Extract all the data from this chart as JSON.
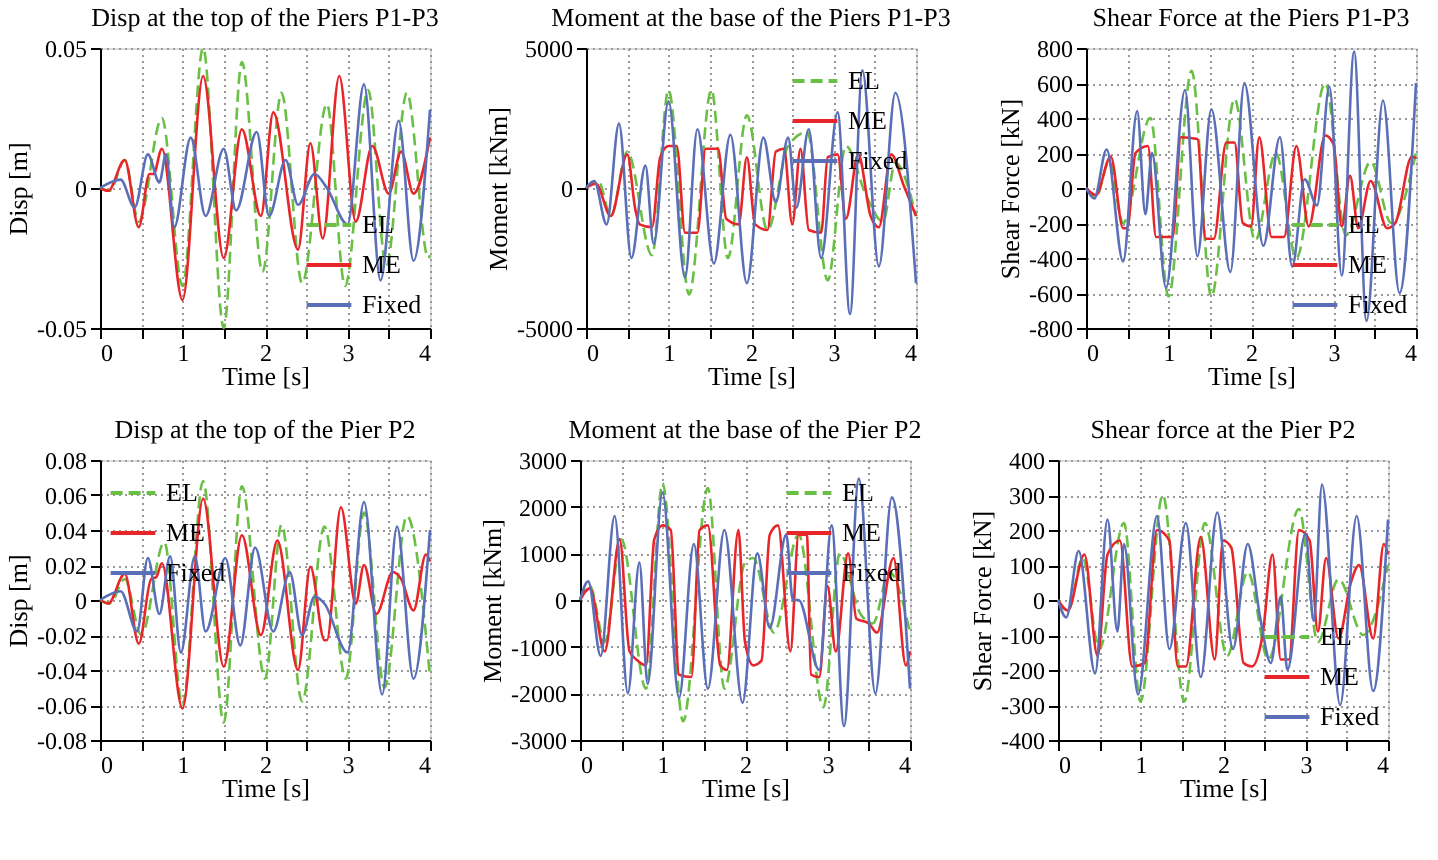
{
  "chart_data": [
    {
      "type": "line",
      "title": "Disp at the top of the Piers P1-P3",
      "xlabel": "Time  [s]",
      "ylabel": "Disp [m]",
      "xlim": [
        0,
        4
      ],
      "ylim": [
        -0.05,
        0.05
      ],
      "xticks": [
        0,
        {
          "value": 0.5,
          "label": null
        },
        1,
        {
          "value": 1.5,
          "label": null
        },
        2,
        {
          "value": 2.5,
          "label": null
        },
        3,
        {
          "value": 3.5,
          "label": null
        },
        4
      ],
      "yticks": [
        -0.05,
        0,
        0.05
      ],
      "grid": true,
      "legend": "bottom right",
      "series": [
        {
          "name": "EL",
          "color": "#6abf45",
          "line_style": "dashed",
          "x": [
            0,
            0.12,
            0.3,
            0.47,
            0.75,
            1.0,
            1.25,
            1.5,
            1.72,
            1.97,
            2.2,
            2.45,
            2.75,
            2.97,
            3.25,
            3.47,
            3.72,
            3.98,
            4.0
          ],
          "values": [
            0,
            -0.001,
            0.01,
            -0.012,
            0.025,
            -0.035,
            0.05,
            -0.05,
            0.045,
            -0.03,
            0.034,
            -0.034,
            0.03,
            -0.035,
            0.035,
            -0.028,
            0.034,
            -0.025,
            -0.024
          ]
        },
        {
          "name": "ME",
          "color": "#e8262a",
          "line_style": "solid",
          "x": [
            0,
            0.1,
            0.3,
            0.47,
            0.6,
            0.65,
            0.75,
            1.0,
            1.25,
            1.5,
            1.72,
            1.95,
            2.1,
            2.4,
            2.55,
            2.7,
            2.9,
            3.1,
            3.3,
            3.5,
            3.65,
            3.8,
            4.0
          ],
          "values": [
            0,
            -0.001,
            0.01,
            -0.014,
            0.005,
            0.005,
            0.014,
            -0.04,
            0.04,
            -0.025,
            0.021,
            -0.01,
            0.027,
            -0.022,
            0.016,
            -0.018,
            0.04,
            -0.012,
            0.015,
            -0.002,
            0.013,
            -0.002,
            0.018
          ]
        },
        {
          "name": "Fixed",
          "color": "#5a6fb8",
          "line_style": "solid",
          "x": [
            0,
            0.25,
            0.42,
            0.58,
            0.72,
            0.8,
            0.9,
            1.1,
            1.28,
            1.5,
            1.65,
            1.9,
            2.05,
            2.25,
            2.4,
            2.6,
            2.75,
            3.0,
            3.2,
            3.4,
            3.62,
            3.8,
            4.0
          ],
          "values": [
            0,
            0.003,
            -0.007,
            0.012,
            0.002,
            0.012,
            -0.014,
            0.018,
            -0.01,
            0.014,
            -0.008,
            0.02,
            -0.01,
            0.01,
            -0.006,
            0.005,
            0.0,
            -0.013,
            0.037,
            -0.033,
            0.024,
            -0.026,
            0.028
          ]
        }
      ]
    },
    {
      "type": "line",
      "title": "Moment at the base of the Piers P1-P3",
      "xlabel": "Time  [s]",
      "ylabel": "Moment [kNm]",
      "xlim": [
        0,
        4
      ],
      "ylim": [
        -5000,
        5000
      ],
      "xticks": [
        0,
        {
          "value": 0.5,
          "label": null
        },
        1,
        {
          "value": 1.5,
          "label": null
        },
        2,
        {
          "value": 2.5,
          "label": null
        },
        3,
        {
          "value": 3.5,
          "label": null
        },
        4
      ],
      "yticks": [
        -5000,
        0,
        5000
      ],
      "grid": true,
      "legend": "top right",
      "series": [
        {
          "name": "EL",
          "color": "#6abf45",
          "line_style": "dashed",
          "x": [
            0,
            0.15,
            0.3,
            0.5,
            0.8,
            1.0,
            1.25,
            1.52,
            1.72,
            1.95,
            2.2,
            2.45,
            2.68,
            2.93,
            3.15,
            3.4,
            3.6,
            3.75,
            4.0
          ],
          "values": [
            0,
            250,
            -1000,
            1300,
            -2400,
            3500,
            -3800,
            3500,
            -2500,
            2600,
            -1500,
            1500,
            2000,
            -3300,
            1500,
            -300,
            -1200,
            900,
            -1000
          ]
        },
        {
          "name": "ME",
          "color": "#e8262a",
          "line_style": "solid",
          "x": [
            0,
            0.12,
            0.3,
            0.5,
            0.6,
            0.65,
            0.8,
            0.9,
            1.0,
            1.1,
            1.2,
            1.35,
            1.45,
            1.6,
            1.7,
            1.85,
            1.95,
            2.05,
            2.2,
            2.3,
            2.4,
            2.5,
            2.6,
            2.7,
            2.85,
            2.93,
            3.05,
            3.15,
            3.3,
            3.45,
            3.55,
            3.7,
            3.85,
            4.0
          ],
          "values": [
            0,
            150,
            -1000,
            1200,
            -800,
            -1300,
            -1400,
            1100,
            1500,
            1500,
            -1600,
            -1600,
            1400,
            1400,
            -1100,
            -1300,
            1100,
            -1300,
            -1500,
            1300,
            1400,
            -1300,
            1400,
            -1500,
            -1600,
            1100,
            1200,
            -1100,
            1200,
            -1000,
            -1400,
            1200,
            100,
            -1000
          ]
        },
        {
          "name": "Fixed",
          "color": "#5a6fb8",
          "line_style": "solid",
          "x": [
            0,
            0.1,
            0.25,
            0.4,
            0.55,
            0.72,
            0.82,
            1.0,
            1.2,
            1.35,
            1.55,
            1.75,
            1.95,
            2.15,
            2.3,
            2.45,
            2.55,
            2.7,
            2.85,
            3.05,
            3.2,
            3.35,
            3.55,
            3.75,
            4.0
          ],
          "values": [
            0,
            250,
            -1300,
            2300,
            -2500,
            800,
            -2000,
            3100,
            -3200,
            2100,
            -2700,
            1900,
            -3400,
            1800,
            -500,
            1800,
            -700,
            2100,
            -2500,
            2700,
            -4500,
            4200,
            -2800,
            3400,
            -3400
          ]
        }
      ]
    },
    {
      "type": "line",
      "title": "Shear Force at the Piers P1-P3",
      "xlabel": "Time  [s]",
      "ylabel": "Shear Force [kN]",
      "xlim": [
        0,
        4
      ],
      "ylim": [
        -800,
        800
      ],
      "xticks": [
        0,
        {
          "value": 0.5,
          "label": null
        },
        1,
        {
          "value": 1.5,
          "label": null
        },
        2,
        {
          "value": 2.5,
          "label": null
        },
        3,
        {
          "value": 3.5,
          "label": null
        },
        4
      ],
      "yticks": [
        -800,
        -600,
        -400,
        -200,
        0,
        200,
        400,
        600,
        800
      ],
      "grid": true,
      "legend": "bottom right",
      "series": [
        {
          "name": "EL",
          "color": "#6abf45",
          "line_style": "dashed",
          "x": [
            0,
            0.12,
            0.28,
            0.45,
            0.78,
            1.0,
            1.28,
            1.52,
            1.8,
            2.05,
            2.3,
            2.55,
            2.9,
            3.15,
            3.45,
            3.7,
            4.0
          ],
          "values": [
            0,
            -50,
            150,
            -200,
            400,
            -620,
            670,
            -620,
            510,
            -300,
            200,
            -400,
            600,
            -270,
            150,
            -200,
            200
          ]
        },
        {
          "name": "ME",
          "color": "#e8262a",
          "line_style": "solid",
          "x": [
            0,
            0.12,
            0.3,
            0.45,
            0.5,
            0.6,
            0.75,
            0.85,
            0.95,
            1.05,
            1.15,
            1.35,
            1.45,
            1.55,
            1.7,
            1.8,
            1.9,
            2.0,
            2.1,
            2.25,
            2.4,
            2.55,
            2.7,
            2.9,
            3.0,
            3.1,
            3.2,
            3.3,
            3.45,
            3.65,
            3.75,
            3.95,
            4.0
          ],
          "values": [
            0,
            -40,
            180,
            -230,
            -230,
            200,
            240,
            -280,
            -280,
            -280,
            290,
            280,
            -290,
            -290,
            260,
            260,
            -200,
            -220,
            290,
            -280,
            -280,
            240,
            -220,
            300,
            250,
            -220,
            70,
            -230,
            40,
            -230,
            -200,
            180,
            170
          ]
        },
        {
          "name": "Fixed",
          "color": "#5a6fb8",
          "line_style": "solid",
          "x": [
            0,
            0.1,
            0.25,
            0.45,
            0.62,
            0.72,
            0.8,
            0.97,
            1.2,
            1.35,
            1.52,
            1.75,
            1.92,
            2.15,
            2.35,
            2.5,
            2.65,
            2.8,
            2.95,
            3.1,
            3.25,
            3.4,
            3.6,
            3.8,
            4.0
          ],
          "values": [
            0,
            -60,
            220,
            -420,
            440,
            -150,
            200,
            -570,
            560,
            -390,
            450,
            -480,
            600,
            -330,
            290,
            -450,
            50,
            -100,
            580,
            -500,
            780,
            -760,
            500,
            -600,
            600
          ]
        }
      ]
    },
    {
      "type": "line",
      "title": "Disp at the top of the Pier P2",
      "xlabel": "Time  [s]",
      "ylabel": "Disp [m]",
      "xlim": [
        0,
        4
      ],
      "ylim": [
        -0.08,
        0.08
      ],
      "xticks": [
        0,
        {
          "value": 0.5,
          "label": null
        },
        1,
        {
          "value": 1.5,
          "label": null
        },
        2,
        {
          "value": 2.5,
          "label": null
        },
        3,
        {
          "value": 3.5,
          "label": null
        },
        4
      ],
      "yticks": [
        -0.08,
        -0.06,
        -0.04,
        -0.02,
        0,
        0.02,
        0.04,
        0.06,
        0.08
      ],
      "grid": true,
      "legend": "top left",
      "series": [
        {
          "name": "EL",
          "color": "#6abf45",
          "line_style": "dashed",
          "x": [
            0,
            0.12,
            0.3,
            0.5,
            0.78,
            1.0,
            1.25,
            1.5,
            1.72,
            2.0,
            2.2,
            2.45,
            2.72,
            2.98,
            3.2,
            3.45,
            3.72,
            4.0
          ],
          "values": [
            0,
            -0.002,
            0.012,
            -0.02,
            0.033,
            -0.06,
            0.068,
            -0.07,
            0.065,
            -0.045,
            0.043,
            -0.058,
            0.042,
            -0.045,
            0.05,
            -0.05,
            0.048,
            -0.044
          ]
        },
        {
          "name": "ME",
          "color": "#e8262a",
          "line_style": "solid",
          "x": [
            0,
            0.1,
            0.3,
            0.47,
            0.62,
            0.68,
            0.75,
            1.0,
            1.25,
            1.5,
            1.72,
            1.95,
            2.15,
            2.4,
            2.55,
            2.72,
            2.75,
            2.92,
            3.1,
            3.2,
            3.35,
            3.55,
            3.65,
            3.8,
            3.95,
            4.0
          ],
          "values": [
            0,
            -0.002,
            0.015,
            -0.025,
            0.012,
            0.013,
            0.021,
            -0.062,
            0.058,
            -0.038,
            0.037,
            -0.02,
            0.034,
            -0.04,
            0.019,
            -0.023,
            -0.023,
            0.053,
            -0.002,
            0.02,
            -0.008,
            0.016,
            0.012,
            -0.006,
            0.026,
            0.022
          ]
        },
        {
          "name": "Fixed",
          "color": "#5a6fb8",
          "line_style": "solid",
          "x": [
            0,
            0.25,
            0.45,
            0.58,
            0.72,
            0.85,
            0.98,
            1.15,
            1.28,
            1.52,
            1.7,
            1.88,
            2.1,
            2.3,
            2.45,
            2.6,
            2.72,
            3.0,
            3.2,
            3.42,
            3.6,
            3.8,
            4.0
          ],
          "values": [
            0,
            0.005,
            -0.018,
            0.024,
            -0.008,
            0.025,
            -0.03,
            0.025,
            -0.018,
            0.024,
            -0.026,
            0.03,
            -0.018,
            0.016,
            -0.02,
            0.002,
            -0.002,
            -0.03,
            0.056,
            -0.054,
            0.042,
            -0.045,
            0.04
          ]
        }
      ]
    },
    {
      "type": "line",
      "title": "Moment at the base of the Pier P2",
      "xlabel": "Time  [s]",
      "ylabel": "Moment [kNm]",
      "xlim": [
        0,
        4
      ],
      "ylim": [
        -3000,
        3000
      ],
      "xticks": [
        0,
        {
          "value": 0.5,
          "label": null
        },
        1,
        {
          "value": 1.5,
          "label": null
        },
        2,
        {
          "value": 2.5,
          "label": null
        },
        3,
        {
          "value": 3.5,
          "label": null
        },
        4
      ],
      "yticks": [
        -3000,
        -2000,
        -1000,
        0,
        1000,
        2000,
        3000
      ],
      "grid": true,
      "legend": "top right",
      "series": [
        {
          "name": "EL",
          "color": "#6abf45",
          "line_style": "dashed",
          "x": [
            0,
            0.12,
            0.3,
            0.5,
            0.8,
            1.0,
            1.25,
            1.55,
            1.75,
            2.0,
            2.1,
            2.35,
            2.65,
            2.95,
            3.15,
            3.4,
            3.55,
            3.75,
            4.0
          ],
          "values": [
            0,
            300,
            -900,
            1300,
            -1900,
            2500,
            -2600,
            2400,
            -1900,
            800,
            900,
            -700,
            1400,
            -2300,
            1000,
            -300,
            -500,
            600,
            -700
          ]
        },
        {
          "name": "ME",
          "color": "#e8262a",
          "line_style": "solid",
          "x": [
            0,
            0.12,
            0.3,
            0.48,
            0.6,
            0.7,
            0.8,
            0.9,
            1.0,
            1.1,
            1.2,
            1.35,
            1.45,
            1.55,
            1.7,
            1.78,
            1.92,
            2.0,
            2.1,
            2.2,
            2.3,
            2.4,
            2.55,
            2.65,
            2.75,
            2.8,
            2.9,
            3.0,
            3.1,
            3.25,
            3.35,
            3.5,
            3.6,
            3.8,
            3.95,
            4.0
          ],
          "values": [
            0,
            250,
            -1100,
            1300,
            -1100,
            -1300,
            -1400,
            1300,
            1600,
            1500,
            -1600,
            -1650,
            1500,
            1600,
            -1400,
            -1500,
            1500,
            -900,
            -1400,
            -1300,
            1400,
            1600,
            -1100,
            1400,
            1400,
            -1600,
            -1650,
            300,
            -1100,
            1000,
            -400,
            -500,
            -700,
            900,
            -1400,
            -1100
          ]
        },
        {
          "name": "Fixed",
          "color": "#5a6fb8",
          "line_style": "solid",
          "x": [
            0,
            0.1,
            0.25,
            0.42,
            0.58,
            0.72,
            0.82,
            1.0,
            1.2,
            1.38,
            1.55,
            1.75,
            1.97,
            2.15,
            2.3,
            2.5,
            2.58,
            2.65,
            2.9,
            3.05,
            3.2,
            3.38,
            3.58,
            3.78,
            4.0
          ],
          "values": [
            0,
            400,
            -1200,
            1800,
            -2000,
            800,
            -1800,
            2300,
            -2100,
            1200,
            -1900,
            1500,
            -2200,
            1000,
            -600,
            1400,
            0,
            0,
            -1500,
            1600,
            -2700,
            2600,
            -2000,
            2200,
            -1900
          ]
        }
      ]
    },
    {
      "type": "line",
      "title": "Shear force at the Pier P2",
      "xlabel": "Time  [s]",
      "ylabel": "Shear Force [kN]",
      "xlim": [
        0,
        4
      ],
      "ylim": [
        -400,
        400
      ],
      "xticks": [
        0,
        {
          "value": 0.5,
          "label": null
        },
        1,
        {
          "value": 1.5,
          "label": null
        },
        2,
        {
          "value": 2.5,
          "label": null
        },
        3,
        {
          "value": 3.5,
          "label": null
        },
        4
      ],
      "yticks": [
        -400,
        -300,
        -200,
        -100,
        0,
        100,
        200,
        300,
        400
      ],
      "grid": true,
      "legend": "bottom right",
      "series": [
        {
          "name": "EL",
          "color": "#6abf45",
          "line_style": "dashed",
          "x": [
            0,
            0.12,
            0.3,
            0.5,
            0.8,
            1.0,
            1.27,
            1.53,
            1.78,
            2.05,
            2.3,
            2.55,
            2.92,
            3.15,
            3.4,
            3.7,
            4.0
          ],
          "values": [
            0,
            -30,
            120,
            -140,
            220,
            -290,
            300,
            -290,
            220,
            -160,
            80,
            -170,
            260,
            -120,
            60,
            -100,
            100
          ]
        },
        {
          "name": "ME",
          "color": "#e8262a",
          "line_style": "solid",
          "x": [
            0,
            0.12,
            0.32,
            0.48,
            0.6,
            0.75,
            0.9,
            1.05,
            1.2,
            1.35,
            1.45,
            1.55,
            1.73,
            1.9,
            2.0,
            2.1,
            2.25,
            2.35,
            2.48,
            2.6,
            2.7,
            2.8,
            2.92,
            3.05,
            3.15,
            3.25,
            3.4,
            3.55,
            3.65,
            3.82,
            3.95,
            4.0
          ],
          "values": [
            0,
            -30,
            130,
            -160,
            130,
            170,
            -190,
            -180,
            200,
            170,
            -190,
            -190,
            180,
            -170,
            170,
            150,
            -180,
            -190,
            -100,
            130,
            -170,
            -170,
            200,
            170,
            -90,
            120,
            -110,
            50,
            100,
            -110,
            160,
            130
          ]
        },
        {
          "name": "Fixed",
          "color": "#5a6fb8",
          "line_style": "solid",
          "x": [
            0,
            0.1,
            0.25,
            0.45,
            0.6,
            0.72,
            0.8,
            0.97,
            1.2,
            1.35,
            1.55,
            1.73,
            1.93,
            2.12,
            2.3,
            2.45,
            2.58,
            2.7,
            2.78,
            3.0,
            3.1,
            3.2,
            3.42,
            3.62,
            3.82,
            4.0
          ],
          "values": [
            0,
            -50,
            140,
            -210,
            230,
            -90,
            160,
            -270,
            240,
            -140,
            220,
            -220,
            250,
            -140,
            160,
            -50,
            -180,
            10,
            -200,
            190,
            -60,
            330,
            -300,
            240,
            -260,
            230
          ]
        }
      ]
    }
  ]
}
